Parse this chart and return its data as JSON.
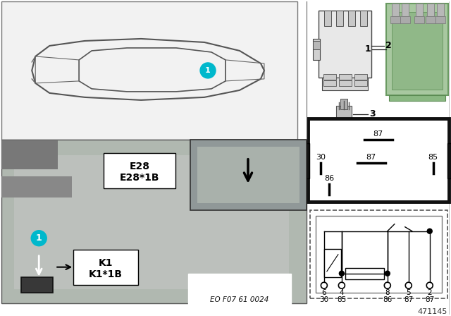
{
  "bg_color": "#ffffff",
  "teal_color": "#00b8cc",
  "gray_photo": "#b0b0b0",
  "gray_light": "#d8d8d8",
  "gray_dark": "#888888",
  "green_relay": "#a8c8a0",
  "green_relay_dark": "#7aaa72",
  "black": "#000000",
  "white": "#ffffff",
  "part_number": "471145",
  "code_label": "EO F07 61 0024",
  "item2_label": "2",
  "item3_label": "3",
  "item1_label": "1",
  "e28_line1": "E28",
  "e28_line2": "E28*1B",
  "k1_line1": "K1",
  "k1_line2": "K1*1B",
  "pin87_top": "87",
  "pin30": "30",
  "pin87_mid": "87",
  "pin85": "85",
  "pin86": "86",
  "circ_row1": [
    "6",
    "4",
    "8",
    "5",
    "2"
  ],
  "circ_row2": [
    "30",
    "85",
    "86",
    "87",
    "87"
  ]
}
